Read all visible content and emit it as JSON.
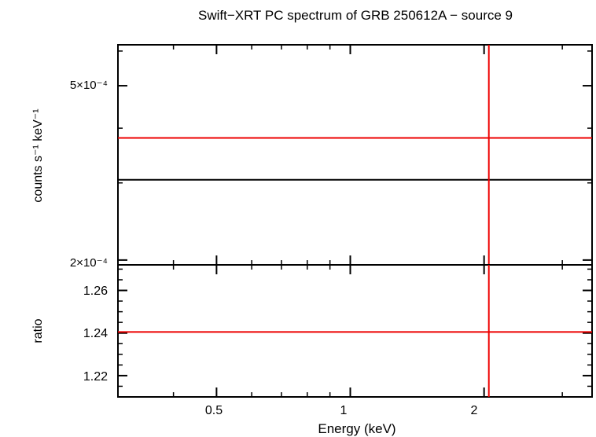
{
  "chart_data": [
    {
      "panel": "spectrum",
      "type": "line",
      "title": "Swift−XRT PC spectrum of GRB 250612A − source 9",
      "xlabel": "",
      "ylabel": "counts s⁻¹ keV⁻¹",
      "xscale": "log",
      "yscale": "log",
      "xlim": [
        0.3,
        3.5
      ],
      "ylim": [
        0.000195,
        0.00062
      ],
      "y_tick_labels": [
        {
          "value": 0.0005,
          "label": "5×10⁻⁴"
        },
        {
          "value": 0.0002,
          "label": "2×10⁻⁴"
        }
      ],
      "series": [
        {
          "role": "data",
          "color": "#000000",
          "x": [
            0.3,
            3.5
          ],
          "y": [
            0.000305,
            0.000305
          ]
        },
        {
          "role": "model",
          "color": "#ee0000",
          "x": [
            0.3,
            3.5
          ],
          "y": [
            0.00038,
            0.00038
          ]
        }
      ],
      "vertical_lines": [
        {
          "x": 2.05,
          "color": "#ee0000"
        }
      ]
    },
    {
      "panel": "ratio",
      "type": "line",
      "xlabel": "Energy (keV)",
      "ylabel": "ratio",
      "xscale": "log",
      "xlim": [
        0.3,
        3.5
      ],
      "ylim": [
        1.21,
        1.272
      ],
      "x_tick_labels": [
        {
          "value": 0.5,
          "label": "0.5"
        },
        {
          "value": 1,
          "label": "1"
        },
        {
          "value": 2,
          "label": "2"
        }
      ],
      "y_tick_labels": [
        {
          "value": 1.22,
          "label": "1.22"
        },
        {
          "value": 1.24,
          "label": "1.24"
        },
        {
          "value": 1.26,
          "label": "1.26"
        }
      ],
      "series": [
        {
          "role": "ratio",
          "color": "#ee0000",
          "x": [
            0.3,
            3.5
          ],
          "y": [
            1.2405,
            1.2405
          ]
        }
      ],
      "vertical_lines": [
        {
          "x": 2.05,
          "color": "#ee0000"
        }
      ]
    }
  ]
}
